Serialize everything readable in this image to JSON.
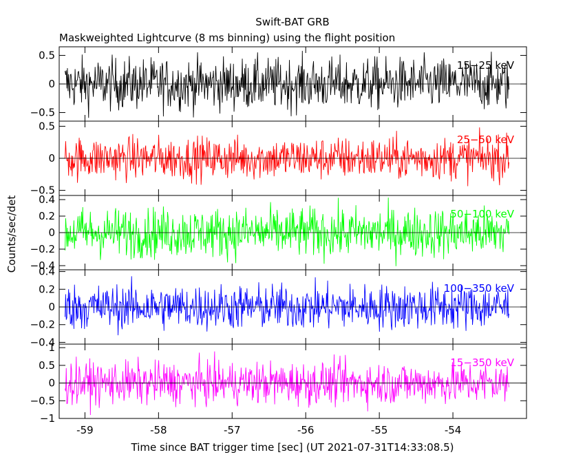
{
  "title": "Swift-BAT GRB",
  "subtitle": "Maskweighted Lightcurve (8 ms binning) using the flight position",
  "ylabel": "Counts/sec/det",
  "xlabel": "Time since BAT trigger time [sec] (UT 2021-07-31T14:33:08.5)",
  "chart_data": {
    "type": "line",
    "x_range": [
      -59.27,
      -53.24
    ],
    "xlim": [
      -59.35,
      -53.0
    ],
    "x_ticks": [
      -59,
      -58,
      -57,
      -56,
      -55,
      -54
    ],
    "x_tick_labels": [
      "-59",
      "-58",
      "-57",
      "-56",
      "-55",
      "-54"
    ],
    "bin_width_s": 0.008,
    "panels": [
      {
        "band": "15-25 keV",
        "label": "15−25 keV",
        "color": "#000000",
        "ylim": [
          -0.65,
          0.65
        ],
        "y_ticks": [
          0.5,
          0,
          -0.5
        ],
        "y_tick_labels": [
          "0.5",
          "0",
          "−0.5"
        ],
        "amplitude": 0.3
      },
      {
        "band": "25-50 keV",
        "label": "25−50 keV",
        "color": "#ff0000",
        "ylim": [
          -0.58,
          0.58
        ],
        "y_ticks": [
          0.5,
          0,
          -0.5
        ],
        "y_tick_labels": [
          "0.5",
          "0",
          "−0.5"
        ],
        "amplitude": 0.22
      },
      {
        "band": "50-100 keV",
        "label": "50−100 keV",
        "color": "#00ff00",
        "ylim": [
          -0.45,
          0.45
        ],
        "y_ticks": [
          0.4,
          0.2,
          0,
          -0.2,
          -0.4
        ],
        "y_tick_labels": [
          "0.4",
          "0.2",
          "0",
          "−0.2",
          "−0.4"
        ],
        "amplitude": 0.2
      },
      {
        "band": "100-350 keV",
        "label": "100−350 keV",
        "color": "#0000ff",
        "ylim": [
          -0.42,
          0.42
        ],
        "y_ticks": [
          0.4,
          0.2,
          0,
          -0.2,
          -0.4
        ],
        "y_tick_labels": [
          "0.4",
          "0.2",
          "0",
          "−0.2",
          "−0.4"
        ],
        "amplitude": 0.17
      },
      {
        "band": "15-350 keV",
        "label": "15−350 keV",
        "color": "#ff00ff",
        "ylim": [
          -1.0,
          1.1
        ],
        "y_ticks": [
          1,
          0.5,
          0,
          -0.5,
          -1
        ],
        "y_tick_labels": [
          "1",
          "0.5",
          "0",
          "−0.5",
          "−1"
        ],
        "amplitude": 0.4
      }
    ]
  }
}
